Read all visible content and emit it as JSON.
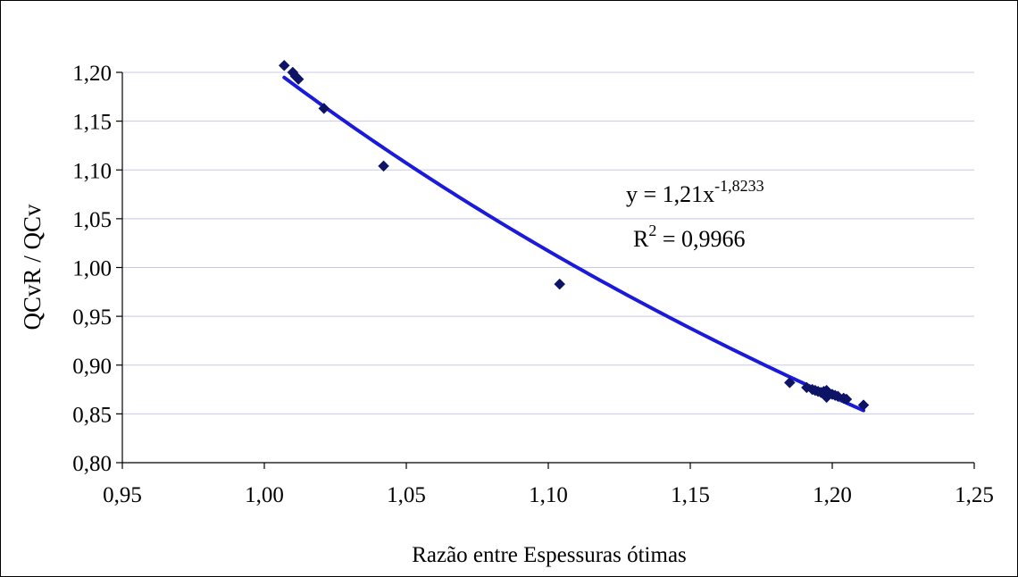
{
  "chart_data": {
    "type": "scatter",
    "title": "",
    "xlabel": "Razão entre Espessuras ótimas",
    "ylabel": "QCvR / QCv",
    "xlim": [
      0.95,
      1.25
    ],
    "ylim": [
      0.8,
      1.2
    ],
    "x_ticks": [
      "0,95",
      "1,00",
      "1,05",
      "1,10",
      "1,15",
      "1,20",
      "1,25"
    ],
    "y_ticks": [
      "0,80",
      "0,85",
      "0,90",
      "0,95",
      "1,00",
      "1,05",
      "1,10",
      "1,15",
      "1,20"
    ],
    "grid": "horizontal",
    "legend": "none",
    "series": [
      {
        "marker": "diamond",
        "color": "#0d1466",
        "points": [
          [
            1.007,
            1.207
          ],
          [
            1.01,
            1.2
          ],
          [
            1.011,
            1.196
          ],
          [
            1.012,
            1.193
          ],
          [
            1.021,
            1.163
          ],
          [
            1.042,
            1.104
          ],
          [
            1.104,
            0.983
          ],
          [
            1.185,
            0.882
          ],
          [
            1.191,
            0.877
          ],
          [
            1.193,
            0.875
          ],
          [
            1.194,
            0.874
          ],
          [
            1.195,
            0.873
          ],
          [
            1.196,
            0.872
          ],
          [
            1.197,
            0.873
          ],
          [
            1.198,
            0.874
          ],
          [
            1.198,
            0.867
          ],
          [
            1.199,
            0.871
          ],
          [
            1.2,
            0.87
          ],
          [
            1.201,
            0.869
          ],
          [
            1.202,
            0.868
          ],
          [
            1.204,
            0.866
          ],
          [
            1.205,
            0.865
          ],
          [
            1.211,
            0.859
          ]
        ]
      }
    ],
    "trendline": {
      "type": "power",
      "a": 1.21,
      "b": -1.8233,
      "x_range": [
        1.007,
        1.211
      ],
      "color": "#1a1adb"
    },
    "annotation": {
      "equation_prefix": "y = 1,21x",
      "equation_exponent": "-1,8233",
      "r2_prefix": "R",
      "r2_exponent": "2",
      "r2_suffix": " = 0,9966"
    }
  }
}
